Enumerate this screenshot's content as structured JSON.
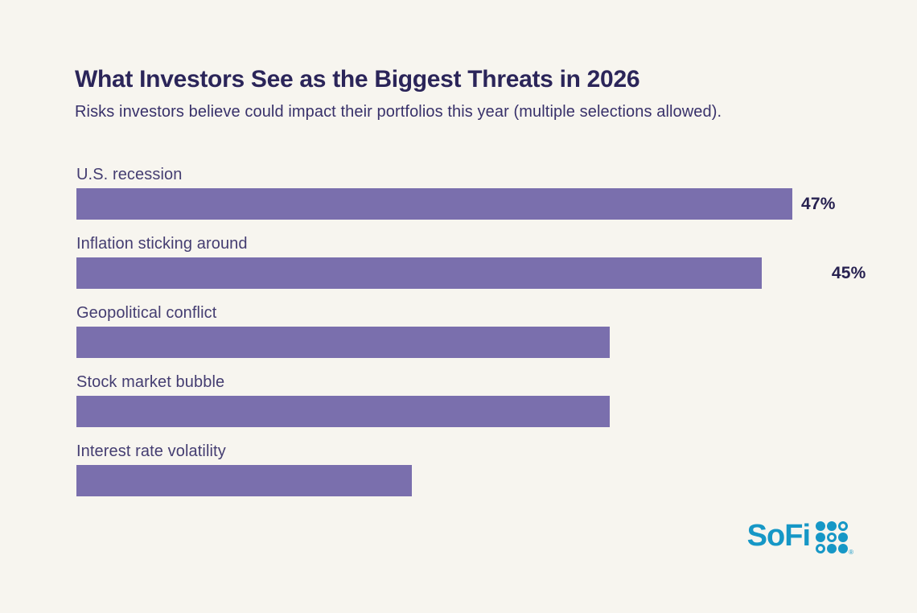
{
  "chart_data": {
    "type": "bar",
    "orientation": "horizontal",
    "title": "What Investors See as the Biggest Threats in 2026",
    "subtitle": "Risks investors believe could impact their portfolios this year (multiple selections allowed).",
    "categories": [
      "U.S. recession",
      "Inflation sticking around",
      "Geopolitical conflict",
      "Stock market bubble",
      "Interest rate volatility"
    ],
    "values": [
      47,
      45,
      35,
      35,
      22
    ],
    "value_labels": [
      "47%",
      "45%",
      "35%",
      "35%",
      "22%"
    ],
    "xlim": [
      0,
      47
    ],
    "xlabel": "",
    "ylabel": "",
    "grid": false,
    "legend": false,
    "bar_color": "#7a6fad"
  },
  "colors": {
    "background": "#f7f5ef",
    "bar": "#7a6fad",
    "title_text": "#2b2559",
    "category_text": "#443d71",
    "value_text": "#272150",
    "brand_teal": "#1697c6"
  },
  "branding": {
    "logo_text": "SoFi",
    "registered_mark": "®",
    "dots_pattern": [
      [
        1,
        1,
        0
      ],
      [
        1,
        0,
        1
      ],
      [
        0,
        1,
        1
      ]
    ]
  }
}
